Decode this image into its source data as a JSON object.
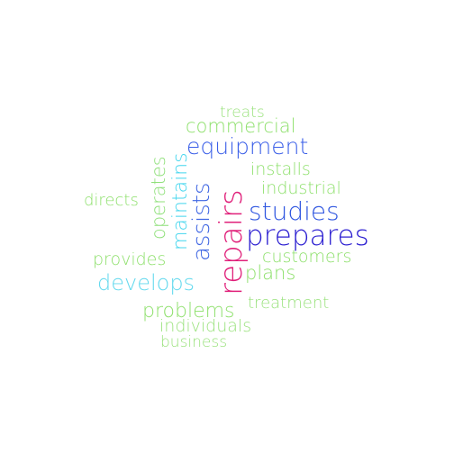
{
  "words": [
    {
      "text": "repairs",
      "color": "#e0207a"
    },
    {
      "text": "prepares",
      "color": "#2c1fd1"
    },
    {
      "text": "studies",
      "color": "#2f56e0"
    },
    {
      "text": "equipment",
      "color": "#3b5fe8"
    },
    {
      "text": "assists",
      "color": "#3f66e3"
    },
    {
      "text": "develops",
      "color": "#63d9ee"
    },
    {
      "text": "maintains",
      "color": "#45d6ee"
    },
    {
      "text": "operates",
      "color": "#8fe07a"
    },
    {
      "text": "commercial",
      "color": "#8ee06c"
    },
    {
      "text": "installs",
      "color": "#8ee06c"
    },
    {
      "text": "industrial",
      "color": "#8ee06c"
    },
    {
      "text": "customers",
      "color": "#8ee06c"
    },
    {
      "text": "plans",
      "color": "#8ee06c"
    },
    {
      "text": "problems",
      "color": "#8ee06c"
    },
    {
      "text": "treatment",
      "color": "#9ae27d"
    },
    {
      "text": "individuals",
      "color": "#9ae27d"
    },
    {
      "text": "business",
      "color": "#9ae27d"
    },
    {
      "text": "provides",
      "color": "#8ee06c"
    },
    {
      "text": "directs",
      "color": "#8ee06c"
    },
    {
      "text": "treats",
      "color": "#9ae27d"
    }
  ]
}
